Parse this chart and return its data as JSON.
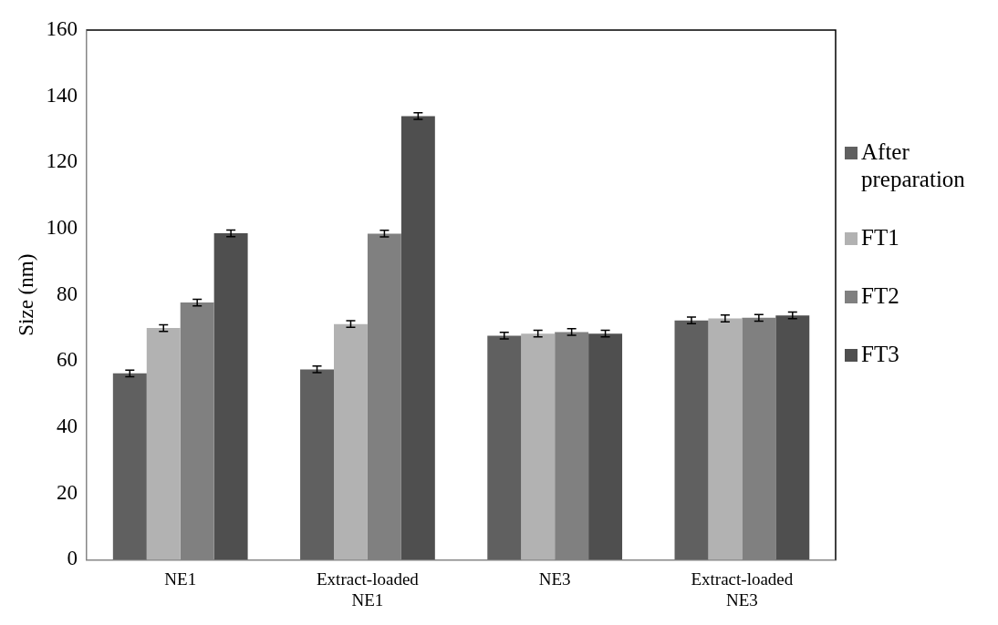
{
  "chart_data": {
    "type": "bar",
    "ylabel": "Size (nm)",
    "categories": [
      "NE1",
      "Extract-loaded NE1",
      "NE3",
      "Extract-loaded NE3"
    ],
    "series": [
      {
        "name": "After preparation",
        "color": "#606060",
        "values": [
          56.3,
          57.5,
          67.7,
          72.3
        ],
        "errors": [
          1,
          1,
          1,
          1
        ]
      },
      {
        "name": "FT1",
        "color": "#b2b2b2",
        "values": [
          70,
          71.2,
          68.3,
          72.9
        ],
        "errors": [
          1,
          1,
          1,
          1
        ]
      },
      {
        "name": "FT2",
        "color": "#808080",
        "values": [
          77.7,
          98.5,
          68.8,
          73.1
        ],
        "errors": [
          1,
          1,
          1,
          1
        ]
      },
      {
        "name": "FT3",
        "color": "#4f4f4f",
        "values": [
          98.6,
          134,
          68.3,
          73.8
        ],
        "errors": [
          1,
          1,
          1,
          1
        ]
      }
    ],
    "ylim": [
      0,
      160
    ],
    "yticks": [
      0,
      20,
      40,
      60,
      80,
      100,
      120,
      140,
      160
    ],
    "grid": false,
    "legend": "right"
  }
}
